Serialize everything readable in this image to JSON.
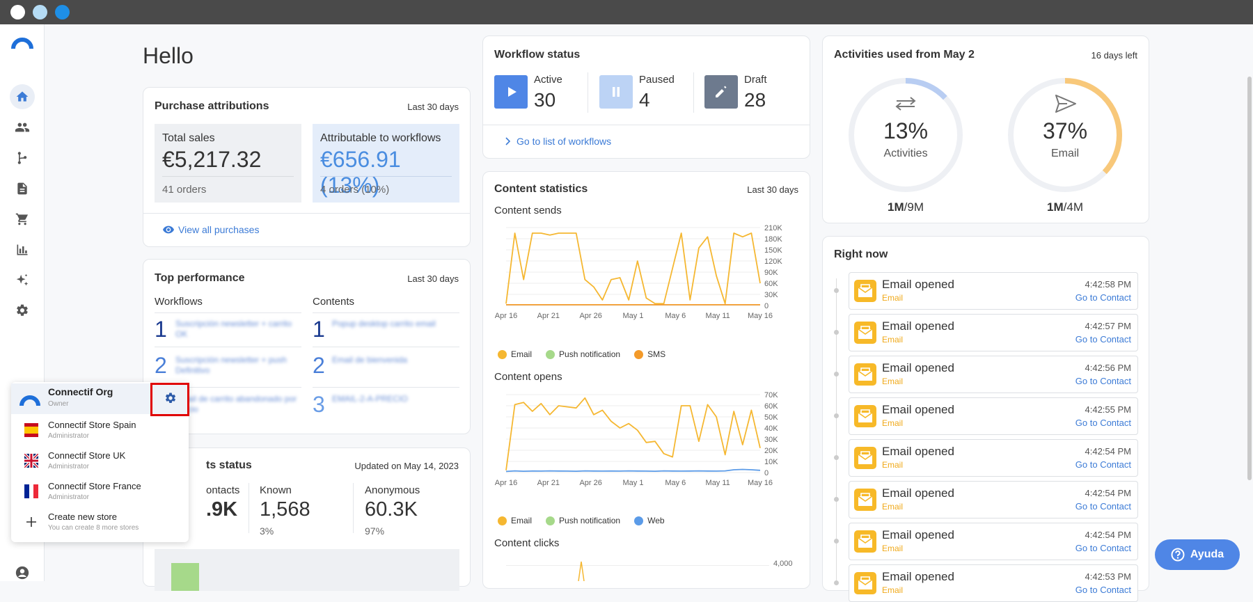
{
  "greeting": "Hello",
  "colors": {
    "accent": "#3c7bd6",
    "email": "#f5b731",
    "push": "#a6d98a",
    "sms": "#f39a2a",
    "web": "#5b9be8",
    "highlight_box": "#e00000"
  },
  "sidebar": {
    "icons": [
      "logo-icon",
      "home-icon",
      "contacts-icon",
      "workflows-icon",
      "contents-icon",
      "cart-icon",
      "analytics-icon",
      "ai-sparkle-icon",
      "settings-icon",
      "user-icon"
    ]
  },
  "purchase": {
    "title": "Purchase attributions",
    "meta": "Last 30 days",
    "total_label": "Total sales",
    "total_value": "€5,217.32",
    "total_orders": "41 orders",
    "attr_label": "Attributable to workflows",
    "attr_value": "€656.91 (13%)",
    "attr_orders": "4 orders (10%)",
    "view_all": "View all purchases"
  },
  "top": {
    "title": "Top performance",
    "meta": "Last 30 days",
    "workflows_label": "Workflows",
    "contents_label": "Contents",
    "workflows": [
      {
        "rank": "1",
        "name": "Suscripción newsletter + carrito OK"
      },
      {
        "rank": "2",
        "name": "Suscripción newsletter + push Definitivo"
      },
      {
        "rank": "3",
        "name": "Email de carrito abandonado por precio"
      }
    ],
    "contents": [
      {
        "rank": "1",
        "name": "Popup desktop carrito email"
      },
      {
        "rank": "2",
        "name": "Email de bienvenida"
      },
      {
        "rank": "3",
        "name": "EMAIL-2-A-PRECIO"
      }
    ]
  },
  "contacts": {
    "title": "ts status",
    "meta": "Updated on May 14, 2023",
    "total_label": "ontacts",
    "total_value": ".9K",
    "known_label": "Known",
    "known_value": "1,568",
    "known_pct": "3%",
    "anon_label": "Anonymous",
    "anon_value": "60.3K",
    "anon_pct": "97%"
  },
  "workflow_status": {
    "title": "Workflow status",
    "active_label": "Active",
    "active_value": "30",
    "paused_label": "Paused",
    "paused_value": "4",
    "draft_label": "Draft",
    "draft_value": "28",
    "go_list": "Go to list of workflows"
  },
  "content_stats": {
    "title": "Content statistics",
    "meta": "Last 30 days",
    "sends_label": "Content sends",
    "opens_label": "Content opens",
    "clicks_label": "Content clicks",
    "legend_sends": [
      "Email",
      "Push notification",
      "SMS"
    ],
    "legend_opens": [
      "Email",
      "Push notification",
      "Web"
    ],
    "clicks_axis_top": "4,000"
  },
  "chart_data": [
    {
      "type": "line",
      "title": "Content sends",
      "x_ticks": [
        "Apr 16",
        "Apr 21",
        "Apr 26",
        "May 1",
        "May 6",
        "May 11",
        "May 16"
      ],
      "y_ticks": [
        "0",
        "30K",
        "60K",
        "90K",
        "120K",
        "150K",
        "180K",
        "210K"
      ],
      "ylim": [
        0,
        210000
      ],
      "series": [
        {
          "name": "Email",
          "values": [
            5000,
            195000,
            70000,
            195000,
            195000,
            190000,
            195000,
            195000,
            195000,
            70000,
            50000,
            15000,
            70000,
            75000,
            15000,
            120000,
            20000,
            5000,
            5000,
            100000,
            195000,
            15000,
            155000,
            185000,
            80000,
            5000,
            195000,
            185000,
            195000,
            60000
          ]
        },
        {
          "name": "SMS",
          "values": [
            2000,
            2000,
            2000,
            2000,
            2000,
            2000,
            2000,
            2000,
            2000,
            2000,
            2000,
            2000,
            2000,
            2000,
            2000,
            2000,
            2000,
            2000,
            2000,
            2000,
            2000,
            2000,
            2000,
            2000,
            2000,
            2000,
            2000,
            2000,
            2000,
            2000
          ]
        }
      ]
    },
    {
      "type": "line",
      "title": "Content opens",
      "x_ticks": [
        "Apr 16",
        "Apr 21",
        "Apr 26",
        "May 1",
        "May 6",
        "May 11",
        "May 16"
      ],
      "y_ticks": [
        "0",
        "10K",
        "20K",
        "30K",
        "40K",
        "50K",
        "60K",
        "70K"
      ],
      "ylim": [
        0,
        70000
      ],
      "series": [
        {
          "name": "Email",
          "values": [
            2000,
            61000,
            63000,
            55000,
            62000,
            52000,
            60000,
            59000,
            58000,
            67000,
            52000,
            56000,
            46000,
            40000,
            44000,
            38000,
            27000,
            28000,
            17000,
            14000,
            60000,
            60000,
            28000,
            61000,
            50000,
            16000,
            55000,
            25000,
            56000,
            22000
          ]
        },
        {
          "name": "Web",
          "values": [
            1000,
            1500,
            1200,
            1400,
            1300,
            1500,
            1400,
            1300,
            1200,
            1500,
            1400,
            1300,
            1400,
            1300,
            1500,
            1400,
            1300,
            1200,
            1500,
            1400,
            1300,
            1400,
            1500,
            1400,
            1300,
            1500,
            2500,
            2800,
            2500,
            2000
          ]
        }
      ]
    }
  ],
  "activities": {
    "title": "Activities used from May 2",
    "meta": "16 days left",
    "gauges": [
      {
        "pct_label": "13%",
        "pct": 13,
        "name": "Activities",
        "used": "1M",
        "total": "/9M"
      },
      {
        "pct_label": "37%",
        "pct": 37,
        "name": "Email",
        "used": "1M",
        "total": "/4M"
      }
    ]
  },
  "right_now": {
    "title": "Right now",
    "events": [
      {
        "title": "Email opened",
        "channel": "Email",
        "time": "4:42:58 PM",
        "link": "Go to Contact"
      },
      {
        "title": "Email opened",
        "channel": "Email",
        "time": "4:42:57 PM",
        "link": "Go to Contact"
      },
      {
        "title": "Email opened",
        "channel": "Email",
        "time": "4:42:56 PM",
        "link": "Go to Contact"
      },
      {
        "title": "Email opened",
        "channel": "Email",
        "time": "4:42:55 PM",
        "link": "Go to Contact"
      },
      {
        "title": "Email opened",
        "channel": "Email",
        "time": "4:42:54 PM",
        "link": "Go to Contact"
      },
      {
        "title": "Email opened",
        "channel": "Email",
        "time": "4:42:54 PM",
        "link": "Go to Contact"
      },
      {
        "title": "Email opened",
        "channel": "Email",
        "time": "4:42:54 PM",
        "link": "Go to Contact"
      },
      {
        "title": "Email opened",
        "channel": "Email",
        "time": "4:42:53 PM",
        "link": "Go to Contact"
      }
    ]
  },
  "popup": {
    "items": [
      {
        "name": "Connectif Org",
        "role": "Owner"
      },
      {
        "name": "Connectif Store Spain",
        "role": "Administrator"
      },
      {
        "name": "Connectif Store UK",
        "role": "Administrator"
      },
      {
        "name": "Connectif Store France",
        "role": "Administrator"
      },
      {
        "name": "Create new store",
        "role": "You can create 8 more stores"
      }
    ]
  },
  "help": {
    "label": "Ayuda"
  }
}
